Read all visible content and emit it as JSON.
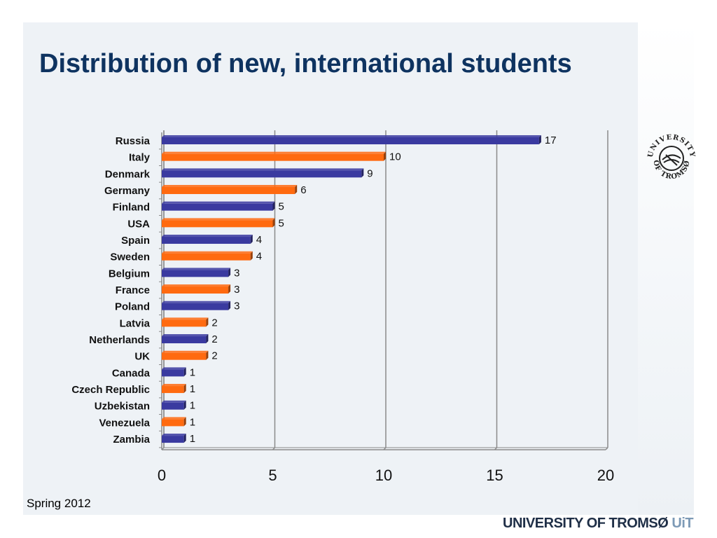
{
  "title": "Distribution of new, international students",
  "footer": {
    "left_text": "Spring 2012",
    "brand_main": "UNIVERSITY OF TROMSØ",
    "brand_suffix": "UiT"
  },
  "logo": {
    "top_text": "UNIVERSITY",
    "bottom_text": "OF TROMSØ"
  },
  "colors": {
    "title": "#0e3360",
    "series_blue": "#3a3aa0",
    "series_orange": "#ff6a10",
    "slide_bg": "#eef2f6"
  },
  "chart_data": {
    "type": "bar",
    "orientation": "horizontal",
    "categories": [
      "Russia",
      "Italy",
      "Denmark",
      "Germany",
      "Finland",
      "USA",
      "Spain",
      "Sweden",
      "Belgium",
      "France",
      "Poland",
      "Latvia",
      "Netherlands",
      "UK",
      "Canada",
      "Czech Republic",
      "Uzbekistan",
      "Venezuela",
      "Zambia"
    ],
    "values": [
      17,
      10,
      9,
      6,
      5,
      5,
      4,
      4,
      3,
      3,
      3,
      2,
      2,
      2,
      1,
      1,
      1,
      1,
      1
    ],
    "bar_colors": [
      "#3a3aa0",
      "#ff6a10",
      "#3a3aa0",
      "#ff6a10",
      "#3a3aa0",
      "#ff6a10",
      "#3a3aa0",
      "#ff6a10",
      "#3a3aa0",
      "#ff6a10",
      "#3a3aa0",
      "#ff6a10",
      "#3a3aa0",
      "#ff6a10",
      "#3a3aa0",
      "#ff6a10",
      "#3a3aa0",
      "#ff6a10",
      "#3a3aa0"
    ],
    "xlim": [
      0,
      20
    ],
    "xticks": [
      0,
      5,
      10,
      15,
      20
    ],
    "grid": "vertical",
    "legend": "none"
  }
}
